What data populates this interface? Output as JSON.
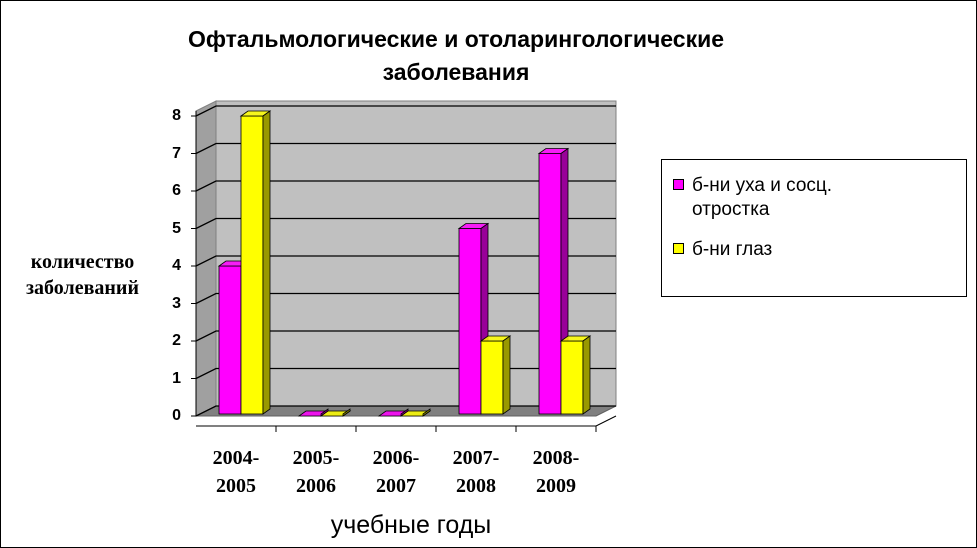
{
  "chart_data": {
    "type": "bar3d",
    "title": "Офтальмологические и отоларингологические\nзаболевания",
    "y_label": "количество\nзаболеваний",
    "x_label": "учебные годы",
    "categories": [
      "2004-\n2005",
      "2005-\n2006",
      "2006-\n2007",
      "2007-\n2008",
      "2008-\n2009"
    ],
    "series": [
      {
        "name": "б-ни уха и сосц.\nотростка",
        "color": "#ff00ff",
        "values": [
          4,
          0,
          0,
          5,
          7
        ]
      },
      {
        "name": "б-ни глаз",
        "color": "#ffff00",
        "values": [
          8,
          0,
          0,
          2,
          2
        ]
      }
    ],
    "ylim": [
      0,
      8
    ],
    "yticks": [
      0,
      1,
      2,
      3,
      4,
      5,
      6,
      7,
      8
    ],
    "grid": true
  }
}
